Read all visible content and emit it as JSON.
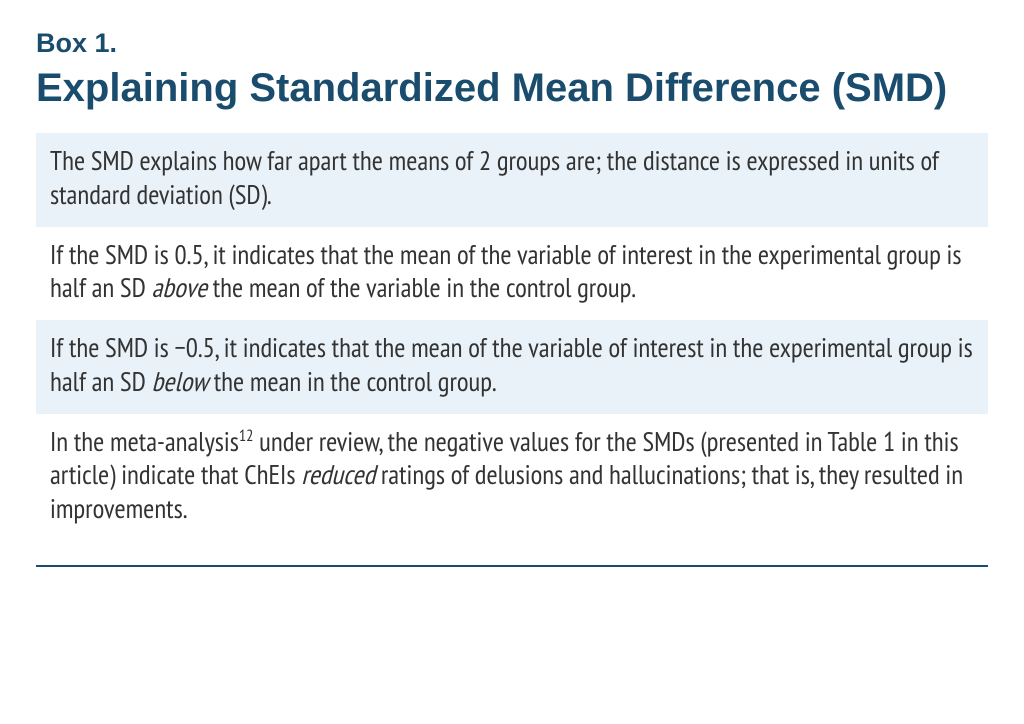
{
  "colors": {
    "heading": "#1a4d6d",
    "body_text": "#333333",
    "blue_bg": "#e9f2f8",
    "white_bg": "#ffffff",
    "rule": "#1a4d6d"
  },
  "typography": {
    "box_label_fontsize": 27,
    "title_fontsize": 40,
    "body_fontsize": 27,
    "body_lineheight": 1.25,
    "body_font": "condensed-sans"
  },
  "box_label": "Box 1.",
  "title": "Explaining Standardized Mean Difference (SMD)",
  "blocks": [
    {
      "bg": "blue",
      "segments": [
        {
          "text": "The SMD explains how far apart the means of 2 groups are; the distance is expressed in units of standard deviation (SD)."
        }
      ]
    },
    {
      "bg": "white",
      "segments": [
        {
          "text": "If the SMD is 0.5, it indicates that the mean of the variable of interest in the experimental group is half an SD "
        },
        {
          "text": "above",
          "italic": true
        },
        {
          "text": " the mean of the variable in the control group."
        }
      ]
    },
    {
      "bg": "blue",
      "segments": [
        {
          "text": "If the SMD is −0.5, it indicates that the mean of the variable of interest in the experimental group is half an SD "
        },
        {
          "text": "below",
          "italic": true
        },
        {
          "text": " the mean in the control group."
        }
      ]
    },
    {
      "bg": "white",
      "segments": [
        {
          "text": "In the meta-analysis"
        },
        {
          "text": "12",
          "sup": true
        },
        {
          "text": " under review, the negative values for the SMDs (presented in Table 1 in this article) indicate that ChEIs "
        },
        {
          "text": "reduced",
          "italic": true
        },
        {
          "text": " ratings of delusions and hallucinations; that is, they resulted in improvements."
        }
      ]
    }
  ]
}
